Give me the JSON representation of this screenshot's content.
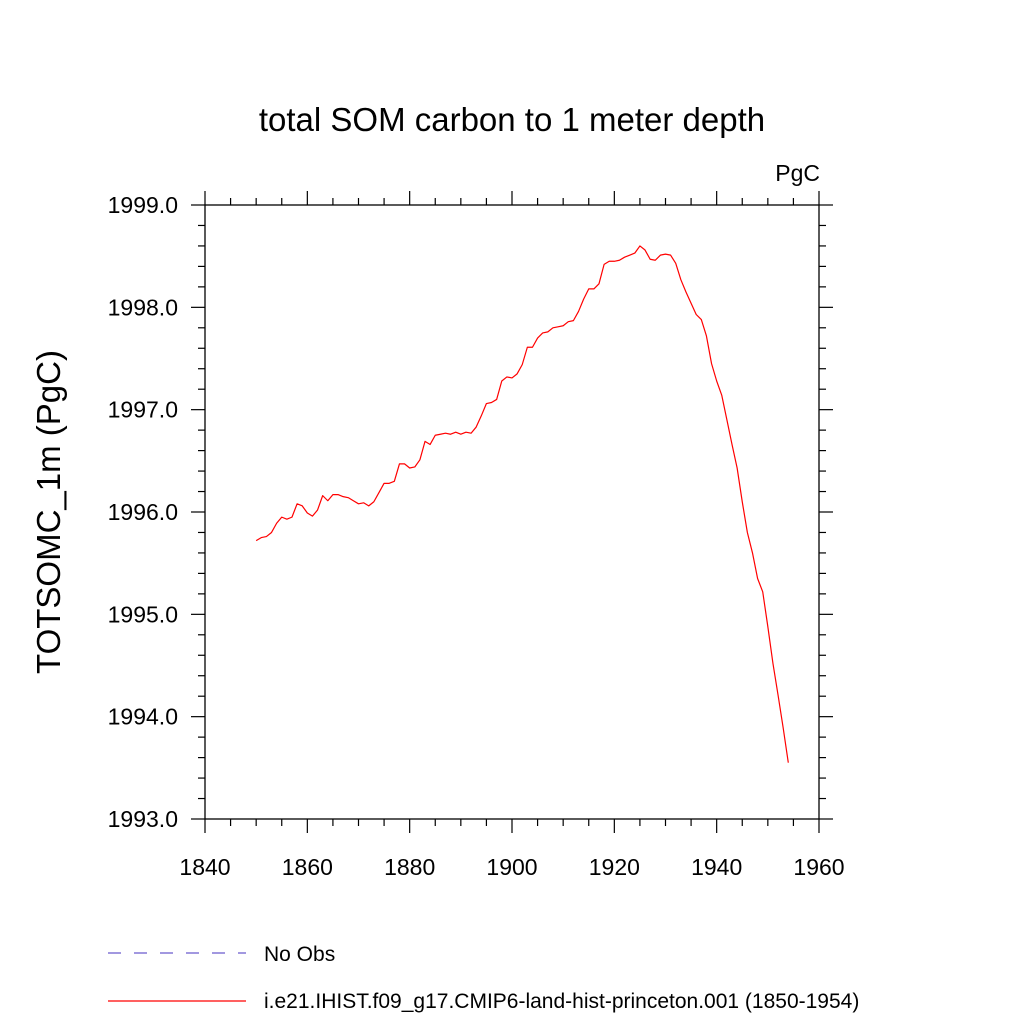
{
  "chart_data": {
    "type": "line",
    "title": "total SOM carbon to 1 meter depth",
    "units": "PgC",
    "ylabel": "TOTSOMC_1m  (PgC)",
    "xlabel": "",
    "xlim": [
      1840,
      1960
    ],
    "ylim": [
      1993.0,
      1999.0
    ],
    "xticks": [
      "1840",
      "1860",
      "1880",
      "1900",
      "1920",
      "1940",
      "1960"
    ],
    "yticks": [
      "1993.0",
      "1994.0",
      "1995.0",
      "1996.0",
      "1997.0",
      "1998.0",
      "1999.0"
    ],
    "grid": false,
    "legend_position": "bottom",
    "series": [
      {
        "name": "No Obs",
        "color": "#6a5acd",
        "style": "dashed",
        "x": [],
        "y": []
      },
      {
        "name": "i.e21.IHIST.f09_g17.CMIP6-land-hist-princeton.001 (1850-1954)",
        "color": "#ff0000",
        "style": "solid",
        "x": [
          1850,
          1851,
          1852,
          1853,
          1854,
          1855,
          1856,
          1857,
          1858,
          1859,
          1860,
          1861,
          1862,
          1863,
          1864,
          1865,
          1866,
          1867,
          1868,
          1869,
          1870,
          1871,
          1872,
          1873,
          1874,
          1875,
          1876,
          1877,
          1878,
          1879,
          1880,
          1881,
          1882,
          1883,
          1884,
          1885,
          1886,
          1887,
          1888,
          1889,
          1890,
          1891,
          1892,
          1893,
          1894,
          1895,
          1896,
          1897,
          1898,
          1899,
          1900,
          1901,
          1902,
          1903,
          1904,
          1905,
          1906,
          1907,
          1908,
          1909,
          1910,
          1911,
          1912,
          1913,
          1914,
          1915,
          1916,
          1917,
          1918,
          1919,
          1920,
          1921,
          1922,
          1923,
          1924,
          1925,
          1926,
          1927,
          1928,
          1929,
          1930,
          1931,
          1932,
          1933,
          1934,
          1935,
          1936,
          1937,
          1938,
          1939,
          1940,
          1941,
          1942,
          1943,
          1944,
          1945,
          1946,
          1947,
          1948,
          1949,
          1950,
          1951,
          1952,
          1953,
          1954
        ],
        "y": [
          1995.72,
          1995.75,
          1995.76,
          1995.8,
          1995.89,
          1995.95,
          1995.93,
          1995.95,
          1996.08,
          1996.06,
          1995.99,
          1995.96,
          1996.02,
          1996.16,
          1996.11,
          1996.17,
          1996.17,
          1996.15,
          1996.14,
          1996.11,
          1996.08,
          1996.09,
          1996.06,
          1996.1,
          1996.19,
          1996.28,
          1996.28,
          1996.3,
          1996.47,
          1996.47,
          1996.43,
          1996.44,
          1996.51,
          1996.69,
          1996.66,
          1996.75,
          1996.76,
          1996.77,
          1996.76,
          1996.78,
          1996.76,
          1996.78,
          1996.77,
          1996.83,
          1996.94,
          1997.06,
          1997.07,
          1997.1,
          1997.28,
          1997.32,
          1997.31,
          1997.35,
          1997.44,
          1997.61,
          1997.61,
          1997.7,
          1997.75,
          1997.76,
          1997.8,
          1997.81,
          1997.82,
          1997.86,
          1997.87,
          1997.96,
          1998.08,
          1998.18,
          1998.18,
          1998.23,
          1998.42,
          1998.45,
          1998.45,
          1998.46,
          1998.49,
          1998.51,
          1998.53,
          1998.6,
          1998.56,
          1998.47,
          1998.46,
          1998.51,
          1998.52,
          1998.51,
          1998.43,
          1998.27,
          1998.15,
          1998.04,
          1997.93,
          1997.88,
          1997.72,
          1997.45,
          1997.28,
          1997.14,
          1996.9,
          1996.66,
          1996.43,
          1996.1,
          1995.8,
          1995.6,
          1995.35,
          1995.22,
          1994.88,
          1994.52,
          1994.21,
          1993.89,
          1993.55
        ]
      }
    ]
  }
}
